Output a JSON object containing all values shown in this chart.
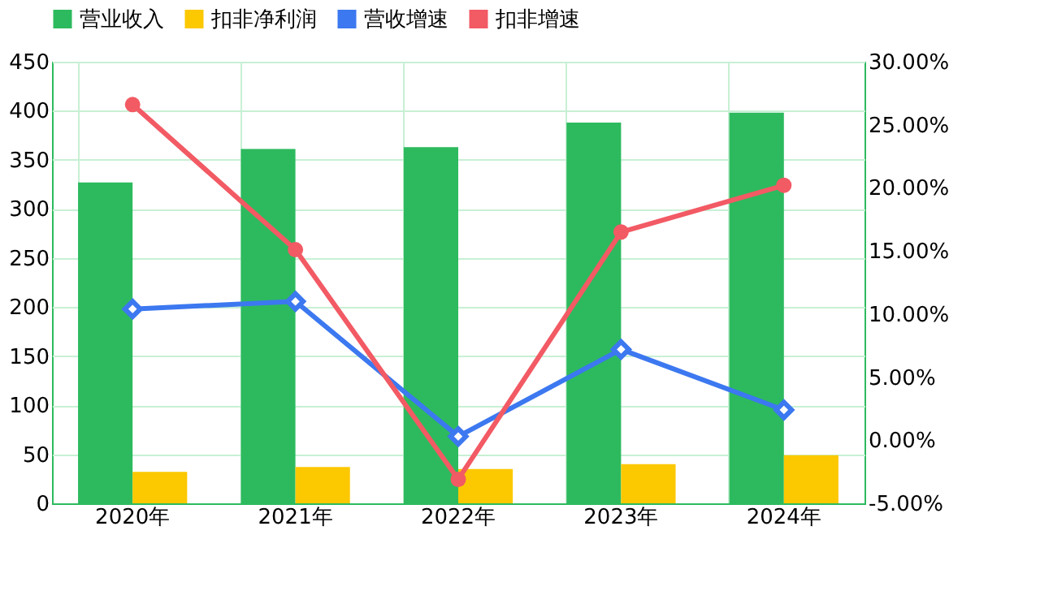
{
  "chart_data": {
    "type": "bar",
    "categories": [
      "2020年",
      "2021年",
      "2022年",
      "2023年",
      "2024年"
    ],
    "series": [
      {
        "name": "营业收入",
        "type": "bar",
        "color": "#2dba5e",
        "values": [
          327,
          361,
          363,
          388,
          398
        ]
      },
      {
        "name": "扣非净利润",
        "type": "bar",
        "color": "#fcc800",
        "values": [
          32,
          37,
          35,
          40,
          49
        ]
      },
      {
        "name": "营收增速",
        "type": "line",
        "axis": "y2",
        "marker": "diamond",
        "color": "#3c78f0",
        "values": [
          10.4,
          11.0,
          0.3,
          7.2,
          2.4
        ]
      },
      {
        "name": "扣非增速",
        "type": "line",
        "axis": "y2",
        "marker": "circle",
        "color": "#f25a64",
        "values": [
          26.6,
          15.1,
          -3.1,
          16.5,
          20.2
        ]
      }
    ],
    "ylim": [
      0,
      450
    ],
    "yticks": [
      0,
      50,
      100,
      150,
      200,
      250,
      300,
      350,
      400,
      450
    ],
    "y2lim": [
      -5,
      30
    ],
    "y2ticks": [
      {
        "value": -5,
        "label": "-5.00%"
      },
      {
        "value": 0,
        "label": "0.00%"
      },
      {
        "value": 5,
        "label": "5.00%"
      },
      {
        "value": 10,
        "label": "10.00%"
      },
      {
        "value": 15,
        "label": "15.00%"
      },
      {
        "value": 20,
        "label": "20.00%"
      },
      {
        "value": 25,
        "label": "25.00%"
      },
      {
        "value": 30,
        "label": "30.00%"
      }
    ],
    "grid": true,
    "legend": "top"
  }
}
